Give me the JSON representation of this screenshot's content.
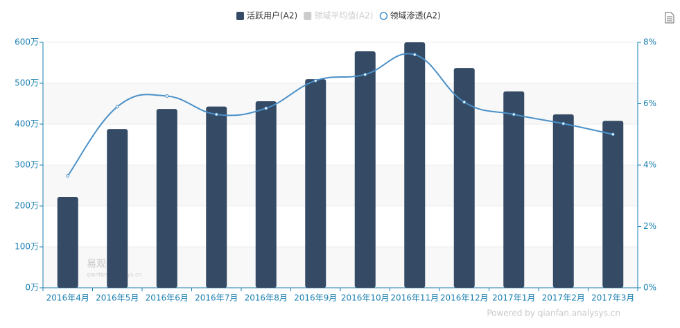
{
  "chart_data": {
    "type": "bar",
    "categories": [
      "2016年4月",
      "2016年5月",
      "2016年6月",
      "2016年7月",
      "2016年8月",
      "2016年9月",
      "2016年10月",
      "2016年11月",
      "2016年12月",
      "2017年1月",
      "2017年2月",
      "2017年3月"
    ],
    "series": [
      {
        "name": "活跃用户(A2)",
        "color": "#344a65",
        "type": "bar",
        "values": [
          222,
          388,
          437,
          443,
          456,
          510,
          578,
          600,
          537,
          480,
          424,
          408
        ]
      },
      {
        "name": "领域平均值(A2)",
        "color": "#cccccc",
        "type": "bar",
        "visible": false,
        "values": [
          null,
          null,
          null,
          null,
          null,
          null,
          null,
          null,
          null,
          null,
          null,
          null
        ]
      },
      {
        "name": "领域渗透(A2)",
        "color": "#4a90c8",
        "type": "line",
        "axis": "y2",
        "values": [
          3.65,
          5.9,
          6.25,
          5.65,
          5.85,
          6.75,
          6.95,
          7.6,
          6.05,
          5.65,
          5.35,
          5.0
        ]
      }
    ],
    "ylim": [
      0,
      600
    ],
    "yticks": [
      {
        "value": 0,
        "label": "0万"
      },
      {
        "value": 100,
        "label": "100万"
      },
      {
        "value": 200,
        "label": "200万"
      },
      {
        "value": 300,
        "label": "300万"
      },
      {
        "value": 400,
        "label": "400万"
      },
      {
        "value": 500,
        "label": "500万"
      },
      {
        "value": 600,
        "label": "600万"
      }
    ],
    "y2lim": [
      0,
      8
    ],
    "y2ticks": [
      {
        "value": 0,
        "label": "0%"
      },
      {
        "value": 2,
        "label": "2%"
      },
      {
        "value": 4,
        "label": "4%"
      },
      {
        "value": 6,
        "label": "6%"
      },
      {
        "value": 8,
        "label": "8%"
      }
    ],
    "grid": true,
    "legend": "top",
    "watermark": "易观千帆",
    "watermark_url": "qianfan.analysys.cn",
    "credit": "Powered by qianfan.analysys.cn"
  }
}
